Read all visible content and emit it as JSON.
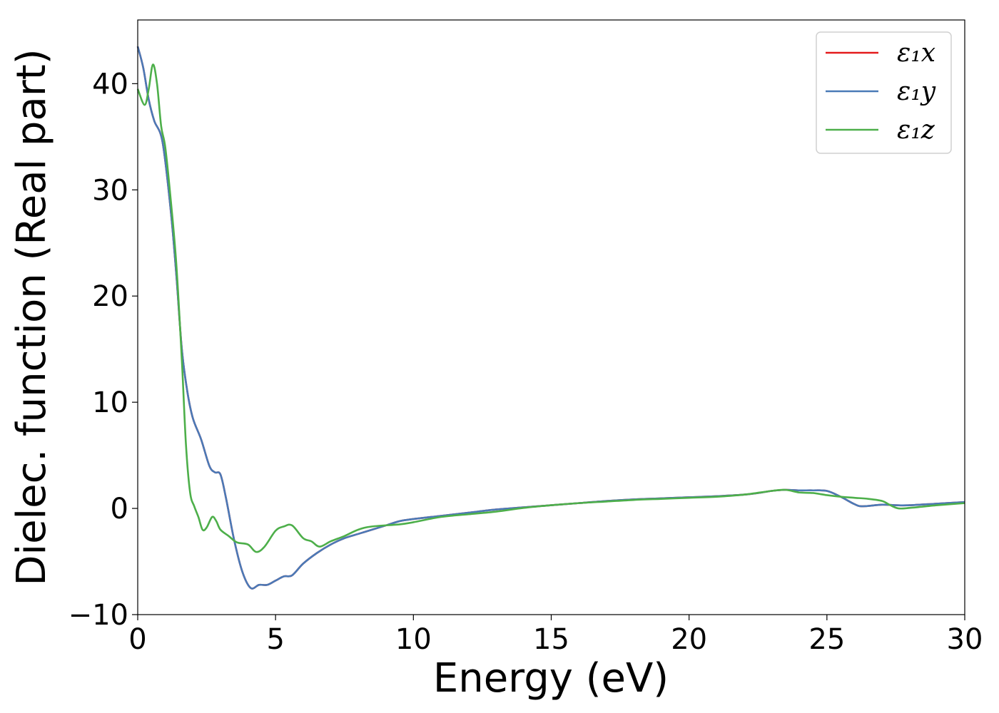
{
  "chart_data": {
    "type": "line",
    "title": "",
    "xlabel": "Energy (eV)",
    "ylabel": "Dielec. function (Real part)",
    "xlim": [
      0,
      30
    ],
    "ylim": [
      -10,
      46
    ],
    "x_ticks": [
      0,
      5,
      10,
      15,
      20,
      25,
      30
    ],
    "y_ticks": [
      -10,
      0,
      10,
      20,
      30,
      40
    ],
    "x_tick_labels": [
      "0",
      "5",
      "10",
      "15",
      "20",
      "25",
      "30"
    ],
    "y_tick_labels": [
      "−10",
      "0",
      "10",
      "20",
      "30",
      "40"
    ],
    "grid": false,
    "legend_position": "top-right",
    "series": [
      {
        "name": "ε₁x",
        "color": "#e41a1c",
        "points": [
          [
            0,
            43.5
          ],
          [
            0.2,
            41.5
          ],
          [
            0.4,
            38.5
          ],
          [
            0.6,
            36.5
          ],
          [
            0.9,
            34.5
          ],
          [
            1.2,
            28
          ],
          [
            1.4,
            22
          ],
          [
            1.6,
            15
          ],
          [
            1.8,
            11
          ],
          [
            2.0,
            8.5
          ],
          [
            2.3,
            6.5
          ],
          [
            2.6,
            4
          ],
          [
            2.8,
            3.4
          ],
          [
            3.0,
            3.2
          ],
          [
            3.2,
            1
          ],
          [
            3.5,
            -3
          ],
          [
            3.8,
            -6
          ],
          [
            4.1,
            -7.5
          ],
          [
            4.4,
            -7.2
          ],
          [
            4.7,
            -7.2
          ],
          [
            5.0,
            -6.8
          ],
          [
            5.3,
            -6.4
          ],
          [
            5.6,
            -6.3
          ],
          [
            6.0,
            -5.2
          ],
          [
            6.5,
            -4.2
          ],
          [
            7.0,
            -3.4
          ],
          [
            7.5,
            -2.8
          ],
          [
            8.0,
            -2.4
          ],
          [
            8.5,
            -2
          ],
          [
            9.0,
            -1.6
          ],
          [
            9.5,
            -1.2
          ],
          [
            10,
            -1
          ],
          [
            11,
            -0.7
          ],
          [
            12,
            -0.4
          ],
          [
            13,
            -0.1
          ],
          [
            14,
            0.1
          ],
          [
            15,
            0.3
          ],
          [
            16,
            0.5
          ],
          [
            17,
            0.7
          ],
          [
            18,
            0.85
          ],
          [
            19,
            0.95
          ],
          [
            20,
            1.05
          ],
          [
            21,
            1.15
          ],
          [
            22,
            1.3
          ],
          [
            22.5,
            1.45
          ],
          [
            23.0,
            1.65
          ],
          [
            23.5,
            1.75
          ],
          [
            24.0,
            1.7
          ],
          [
            24.5,
            1.7
          ],
          [
            25.0,
            1.65
          ],
          [
            25.5,
            1.1
          ],
          [
            26.0,
            0.4
          ],
          [
            26.3,
            0.2
          ],
          [
            27.0,
            0.35
          ],
          [
            27.5,
            0.3
          ],
          [
            28.0,
            0.3
          ],
          [
            29.0,
            0.45
          ],
          [
            30,
            0.6
          ]
        ]
      },
      {
        "name": "ε₁y",
        "color": "#4a7ab7",
        "points": [
          [
            0,
            43.5
          ],
          [
            0.2,
            41.5
          ],
          [
            0.4,
            38.5
          ],
          [
            0.6,
            36.5
          ],
          [
            0.9,
            34.5
          ],
          [
            1.2,
            28
          ],
          [
            1.4,
            22
          ],
          [
            1.6,
            15
          ],
          [
            1.8,
            11
          ],
          [
            2.0,
            8.5
          ],
          [
            2.3,
            6.5
          ],
          [
            2.6,
            4
          ],
          [
            2.8,
            3.4
          ],
          [
            3.0,
            3.2
          ],
          [
            3.2,
            1
          ],
          [
            3.5,
            -3
          ],
          [
            3.8,
            -6
          ],
          [
            4.1,
            -7.5
          ],
          [
            4.4,
            -7.2
          ],
          [
            4.7,
            -7.2
          ],
          [
            5.0,
            -6.8
          ],
          [
            5.3,
            -6.4
          ],
          [
            5.6,
            -6.3
          ],
          [
            6.0,
            -5.2
          ],
          [
            6.5,
            -4.2
          ],
          [
            7.0,
            -3.4
          ],
          [
            7.5,
            -2.8
          ],
          [
            8.0,
            -2.4
          ],
          [
            8.5,
            -2
          ],
          [
            9.0,
            -1.6
          ],
          [
            9.5,
            -1.2
          ],
          [
            10,
            -1
          ],
          [
            11,
            -0.7
          ],
          [
            12,
            -0.4
          ],
          [
            13,
            -0.1
          ],
          [
            14,
            0.1
          ],
          [
            15,
            0.3
          ],
          [
            16,
            0.5
          ],
          [
            17,
            0.7
          ],
          [
            18,
            0.85
          ],
          [
            19,
            0.95
          ],
          [
            20,
            1.05
          ],
          [
            21,
            1.15
          ],
          [
            22,
            1.3
          ],
          [
            22.5,
            1.45
          ],
          [
            23.0,
            1.65
          ],
          [
            23.5,
            1.75
          ],
          [
            24.0,
            1.7
          ],
          [
            24.5,
            1.7
          ],
          [
            25.0,
            1.65
          ],
          [
            25.5,
            1.1
          ],
          [
            26.0,
            0.4
          ],
          [
            26.3,
            0.2
          ],
          [
            27.0,
            0.35
          ],
          [
            27.5,
            0.3
          ],
          [
            28.0,
            0.3
          ],
          [
            29.0,
            0.45
          ],
          [
            30,
            0.6
          ]
        ]
      },
      {
        "name": "ε₁z",
        "color": "#4daf4a",
        "points": [
          [
            0,
            39.5
          ],
          [
            0.25,
            38
          ],
          [
            0.4,
            39.5
          ],
          [
            0.55,
            41.8
          ],
          [
            0.7,
            40
          ],
          [
            0.85,
            36
          ],
          [
            1.0,
            34
          ],
          [
            1.2,
            29
          ],
          [
            1.4,
            23
          ],
          [
            1.6,
            14
          ],
          [
            1.75,
            6
          ],
          [
            1.9,
            1.5
          ],
          [
            2.05,
            0.2
          ],
          [
            2.2,
            -0.8
          ],
          [
            2.35,
            -2
          ],
          [
            2.5,
            -1.8
          ],
          [
            2.7,
            -0.8
          ],
          [
            2.85,
            -1.2
          ],
          [
            3.0,
            -2.0
          ],
          [
            3.3,
            -2.6
          ],
          [
            3.6,
            -3.2
          ],
          [
            4.0,
            -3.4
          ],
          [
            4.3,
            -4.1
          ],
          [
            4.6,
            -3.6
          ],
          [
            5.0,
            -2.1
          ],
          [
            5.3,
            -1.7
          ],
          [
            5.6,
            -1.6
          ],
          [
            6.0,
            -2.8
          ],
          [
            6.3,
            -3.1
          ],
          [
            6.6,
            -3.6
          ],
          [
            7.0,
            -3.1
          ],
          [
            7.5,
            -2.6
          ],
          [
            8.0,
            -2.0
          ],
          [
            8.5,
            -1.7
          ],
          [
            9.5,
            -1.5
          ],
          [
            10,
            -1.3
          ],
          [
            11,
            -0.8
          ],
          [
            12,
            -0.55
          ],
          [
            13,
            -0.3
          ],
          [
            14,
            0.05
          ],
          [
            15,
            0.3
          ],
          [
            16,
            0.5
          ],
          [
            17,
            0.65
          ],
          [
            18,
            0.8
          ],
          [
            19,
            0.9
          ],
          [
            20,
            1.0
          ],
          [
            21,
            1.1
          ],
          [
            22,
            1.3
          ],
          [
            23.0,
            1.65
          ],
          [
            23.5,
            1.75
          ],
          [
            24.0,
            1.5
          ],
          [
            24.5,
            1.45
          ],
          [
            25.0,
            1.25
          ],
          [
            25.5,
            1.1
          ],
          [
            26.0,
            1.0
          ],
          [
            26.5,
            0.9
          ],
          [
            27.0,
            0.7
          ],
          [
            27.3,
            0.3
          ],
          [
            27.6,
            0.0
          ],
          [
            28.0,
            0.05
          ],
          [
            29.0,
            0.3
          ],
          [
            30,
            0.5
          ]
        ]
      }
    ]
  }
}
